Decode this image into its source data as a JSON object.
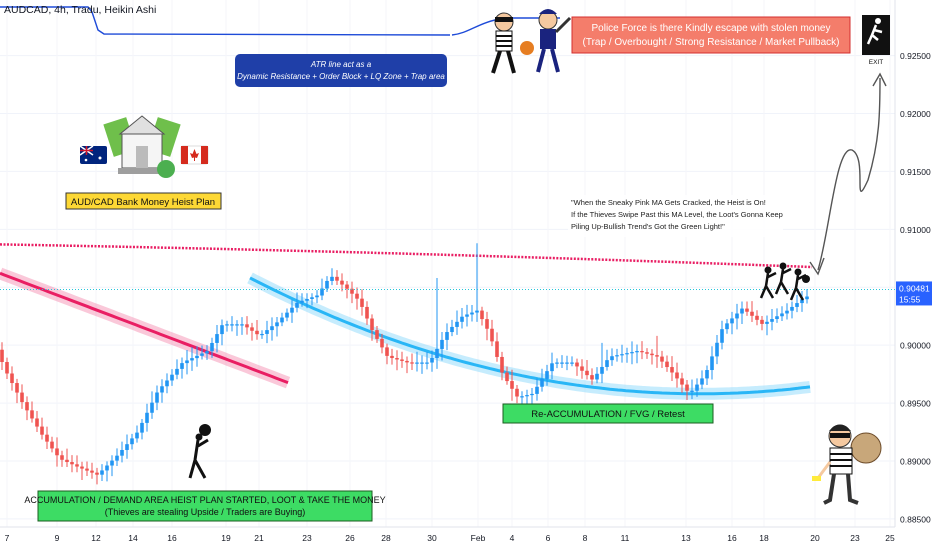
{
  "symbol_label": "AUDCAD, 4h, Tradu, Heikin Ashi",
  "price_tag": {
    "value": "0.90481",
    "countdown": "15:55",
    "bg_color": "#2962ff"
  },
  "colors": {
    "bull": "#2196f3",
    "bear": "#ef5350",
    "pink_ma": "#e91e63",
    "cyan_band": "#29b6f6",
    "atr_line": "#1e4bd8"
  },
  "annotations": {
    "atr_note": {
      "line1": "ATR line act as a",
      "line2": "Dynamic Resistance + Order Block + LQ Zone + Trap area"
    },
    "police_note": {
      "line1": "Police Force is there Kindly escape with stolen money",
      "line2": "(Trap / Overbought / Strong Resistance / Market Pullback)"
    },
    "plan_title": "AUD/CAD Bank Money Heist Plan",
    "quote": {
      "line1": "\"When the Sneaky Pink MA Gets Cracked, the Heist is On!",
      "line2": "If the Thieves Swipe Past this MA Level, the Loot's Gonna Keep",
      "line3": "Piling Up-Bullish Trend's Got the Green Light!\""
    },
    "reaccum": "Re-ACCUMULATION / FVG / Retest",
    "accum": {
      "line1": "ACCUMULATION / DEMAND AREA HEIST PLAN STARTED, LOOT & TAKE THE MONEY",
      "line2": "(Thieves are stealing Upside / Traders are Buying)"
    },
    "exit": "EXIT"
  },
  "icons": [
    "australia-flag-icon",
    "canada-flag-icon",
    "bank-money-icon",
    "police-icon",
    "thief-running-icon",
    "thief-with-bag-icon",
    "thieves-group-icon",
    "exit-sign-icon",
    "robber-mascot-icon"
  ],
  "chart_data": {
    "type": "candlestick",
    "style": "Heikin Ashi",
    "timeframe": "4h",
    "y_axis": {
      "ylim": [
        0.8843,
        0.9298
      ],
      "ticks": [
        "0.92500",
        "0.92000",
        "0.91500",
        "0.91000",
        "0.90500",
        "0.90000",
        "0.89500",
        "0.89000",
        "0.88500"
      ],
      "position": "right"
    },
    "x_axis": {
      "ticks": [
        "7",
        "9",
        "12",
        "14",
        "16",
        "19",
        "21",
        "23",
        "26",
        "28",
        "30",
        "Feb",
        "4",
        "6",
        "8",
        "11",
        "13",
        "16",
        "18",
        "20",
        "23",
        "25"
      ]
    },
    "current_price": 0.90481,
    "grid": true,
    "legend": "none"
  }
}
